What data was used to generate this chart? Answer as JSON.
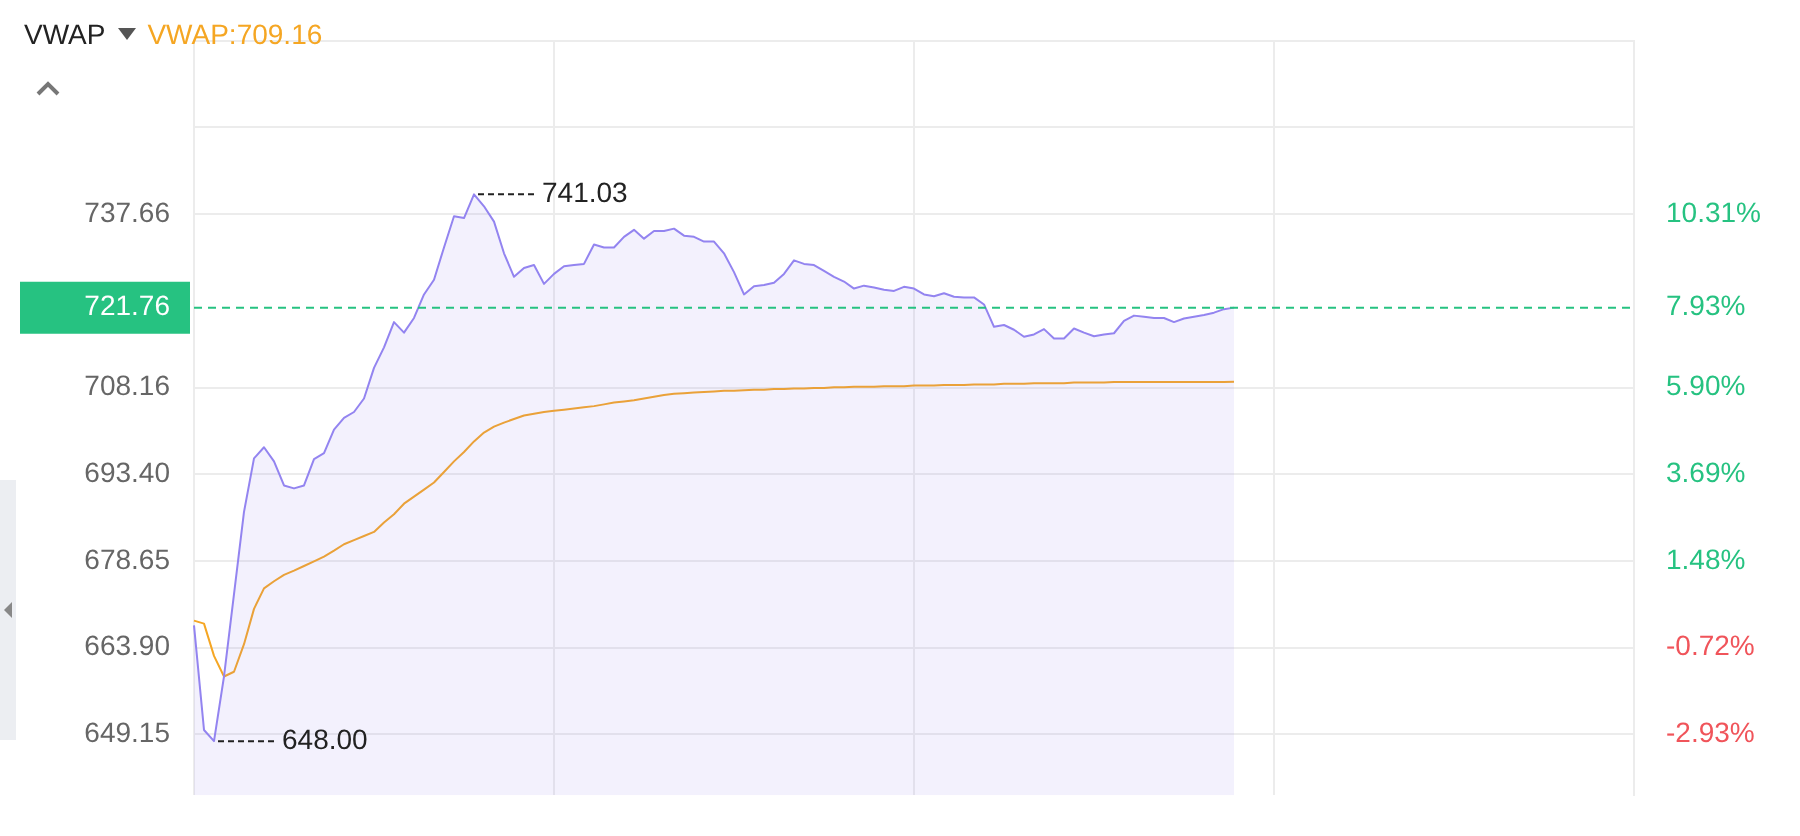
{
  "chart_data": {
    "type": "area",
    "title": "VWAP",
    "legend": "top left",
    "grid": true,
    "tick_labels": "y",
    "categories": [
      null,
      null,
      null,
      null,
      null,
      null,
      null,
      null,
      null,
      null,
      null,
      null,
      null,
      null,
      null,
      null,
      null,
      null,
      null,
      null,
      null,
      null,
      null,
      null,
      null,
      null,
      null,
      null,
      null,
      null,
      null,
      null,
      null,
      null,
      null,
      null,
      null,
      null,
      null,
      null,
      null,
      null,
      null,
      null,
      null,
      null,
      null,
      null,
      null,
      null,
      null,
      null,
      null,
      null,
      null,
      null,
      null,
      null,
      null,
      null,
      null,
      null,
      null,
      null,
      null,
      null,
      null,
      null,
      null,
      null,
      null,
      null,
      null,
      null,
      null,
      null,
      null,
      null,
      null,
      null,
      null,
      null,
      null,
      null,
      null,
      null,
      null,
      null,
      null,
      null,
      null,
      null,
      null,
      null,
      null,
      null,
      null,
      null,
      null,
      null,
      null,
      null,
      null,
      null,
      null,
      null,
      null,
      null,
      null,
      null,
      null,
      null,
      null,
      null,
      null,
      null,
      null,
      null,
      null,
      null,
      null,
      null,
      null,
      null,
      null,
      null,
      null,
      null,
      null,
      null,
      null,
      null,
      null,
      null,
      null,
      null,
      null,
      null,
      null,
      null,
      null,
      null,
      null,
      null,
      null
    ],
    "series": [
      {
        "color": "#9384f0",
        "values": [
          667.7,
          649.9,
          648,
          659,
          673,
          687,
          696.1,
          698,
          695.6,
          691.5,
          691,
          691.5,
          696,
          697,
          701,
          703,
          704,
          706.3,
          711.5,
          715,
          719.3,
          717.5,
          720,
          724,
          726.5,
          732,
          737.3,
          737,
          741.03,
          739,
          736.4,
          731,
          727,
          728.5,
          729,
          725.8,
          727.5,
          728.8,
          729,
          729.2,
          732.5,
          732,
          732,
          733.8,
          735,
          733.5,
          734.8,
          734.8,
          735.2,
          734,
          733.8,
          733,
          733,
          731,
          727.8,
          724,
          725.4,
          725.6,
          726,
          727.5,
          729.8,
          729.2,
          729,
          728,
          727,
          726.2,
          725,
          725.5,
          725.2,
          724.8,
          724.6,
          725.3,
          725,
          724,
          723.7,
          724.2,
          723.6,
          723.5,
          723.5,
          722.3,
          718.5,
          718.8,
          718,
          716.8,
          717.2,
          718.1,
          716.5,
          716.5,
          718.2,
          717.5,
          716.9,
          717.2,
          717.4,
          719.5,
          720.4,
          720.2,
          720,
          720,
          719.3,
          719.9,
          720.2,
          720.5,
          720.9,
          721.5,
          721.76,
          null,
          null,
          null,
          null,
          null,
          null,
          null,
          null,
          null,
          null,
          null,
          null,
          null,
          null,
          null,
          null,
          null,
          null,
          null,
          null,
          null,
          null,
          null,
          null,
          null,
          null,
          null,
          null,
          null,
          null,
          null,
          null,
          null,
          null,
          null,
          null,
          null,
          null,
          null,
          null
        ]
      },
      {
        "type": "line",
        "name": "VWAP:709.16",
        "color": "#f5a623",
        "values": [
          668.5,
          668.0,
          662.5,
          659.0,
          659.8,
          664.5,
          670.5,
          674.0,
          675.2,
          676.3,
          677.0,
          677.8,
          678.6,
          679.4,
          680.4,
          681.5,
          682.2,
          682.9,
          683.6,
          685.2,
          686.6,
          688.4,
          689.6,
          690.8,
          692.0,
          693.8,
          695.6,
          697.2,
          699.0,
          700.5,
          701.5,
          702.2,
          702.8,
          703.4,
          703.7,
          704.0,
          704.2,
          704.4,
          704.6,
          704.8,
          705.0,
          705.3,
          705.6,
          705.8,
          706.0,
          706.3,
          706.6,
          706.9,
          707.1,
          707.2,
          707.3,
          707.4,
          707.5,
          707.6,
          707.6,
          707.7,
          707.8,
          707.8,
          707.9,
          707.9,
          708.0,
          708.0,
          708.1,
          708.1,
          708.2,
          708.2,
          708.3,
          708.3,
          708.3,
          708.4,
          708.4,
          708.4,
          708.5,
          708.5,
          708.5,
          708.6,
          708.6,
          708.6,
          708.7,
          708.7,
          708.7,
          708.8,
          708.8,
          708.8,
          708.9,
          708.9,
          708.9,
          708.9,
          709.0,
          709.0,
          709.0,
          709.0,
          709.1,
          709.1,
          709.1,
          709.1,
          709.1,
          709.1,
          709.1,
          709.1,
          709.1,
          709.1,
          709.1,
          709.1,
          709.16,
          null,
          null,
          null,
          null,
          null,
          null,
          null,
          null,
          null,
          null,
          null,
          null,
          null,
          null,
          null,
          null,
          null,
          null,
          null,
          null,
          null,
          null,
          null,
          null,
          null,
          null,
          null,
          null,
          null,
          null,
          null,
          null,
          null,
          null,
          null,
          null,
          null,
          null,
          null,
          null
        ]
      }
    ],
    "ylim": [
      638.8,
      767.16
    ],
    "yticks": [
      649.15,
      {
        "value": 663.9,
        "label": "663.90"
      },
      678.65,
      {
        "value": 693.4,
        "label": "693.40"
      },
      708.16,
      737.66,
      {
        "value": 752.41,
        "label": null
      },
      {
        "value": 767.16,
        "label": null
      }
    ],
    "y2lim": [
      -4.48,
      14.72
    ],
    "y2ticks": [
      {
        "value": -2.93,
        "label": "-2.93%"
      },
      {
        "value": -0.72,
        "label": "-0.72%"
      },
      {
        "value": 1.48,
        "label": "1.48%"
      },
      {
        "value": 3.69,
        "label": "3.69%"
      },
      {
        "value": 5.9,
        "label": "5.90%"
      },
      {
        "value": 7.93,
        "label": "7.93%"
      },
      {
        "value": 10.31,
        "label": "10.31%"
      }
    ],
    "ref_lines": [
      {
        "axis": "y",
        "value": 721.76,
        "label": "721.76",
        "color": "#26c281",
        "line_style": "dashed"
      }
    ],
    "annotations": [
      "741.03",
      "648.00"
    ]
  }
}
